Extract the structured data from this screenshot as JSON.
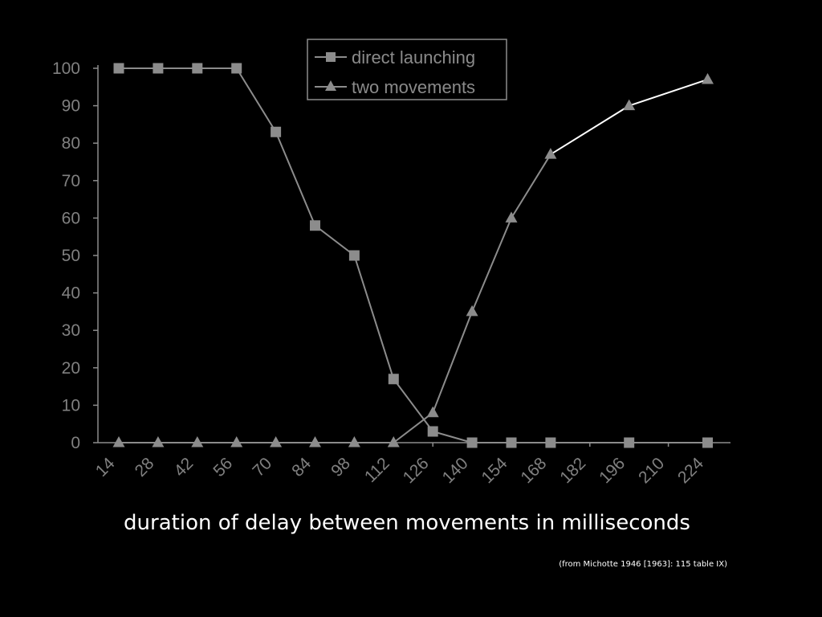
{
  "chart_data": {
    "type": "line",
    "xlabel": "duration of delay between movements in milliseconds",
    "ylabel": "",
    "ylim": [
      0,
      100
    ],
    "yticks": [
      0,
      10,
      20,
      30,
      40,
      50,
      60,
      70,
      80,
      90,
      100
    ],
    "xtick_labels": [
      "14",
      "28",
      "42",
      "56",
      "70",
      "84",
      "98",
      "112",
      "126",
      "140",
      "154",
      "168",
      "182",
      "196",
      "210",
      "224"
    ],
    "legend_position": "top-center",
    "grid": false,
    "series": [
      {
        "name": "direct launching",
        "marker": "square",
        "color": "#8c8c8c",
        "points": [
          {
            "x": 0,
            "y": 100
          },
          {
            "x": 1,
            "y": 100
          },
          {
            "x": 2,
            "y": 100
          },
          {
            "x": 3,
            "y": 100
          },
          {
            "x": 4,
            "y": 83
          },
          {
            "x": 5,
            "y": 58
          },
          {
            "x": 6,
            "y": 50
          },
          {
            "x": 7,
            "y": 17
          },
          {
            "x": 8,
            "y": 3
          },
          {
            "x": 9,
            "y": 0
          },
          {
            "x": 10,
            "y": 0
          },
          {
            "x": 11,
            "y": 0
          },
          {
            "x": 13,
            "y": 0
          },
          {
            "x": 15,
            "y": 0
          }
        ]
      },
      {
        "name": "two movements",
        "marker": "triangle",
        "color": "#8c8c8c",
        "upper_line_color": "#ffffff",
        "points": [
          {
            "x": 0,
            "y": 0
          },
          {
            "x": 1,
            "y": 0
          },
          {
            "x": 2,
            "y": 0
          },
          {
            "x": 3,
            "y": 0
          },
          {
            "x": 4,
            "y": 0
          },
          {
            "x": 5,
            "y": 0
          },
          {
            "x": 6,
            "y": 0
          },
          {
            "x": 7,
            "y": 0
          },
          {
            "x": 8,
            "y": 8
          },
          {
            "x": 9,
            "y": 35
          },
          {
            "x": 10,
            "y": 60
          },
          {
            "x": 11,
            "y": 77
          },
          {
            "x": 13,
            "y": 90
          },
          {
            "x": 15,
            "y": 97
          }
        ]
      }
    ],
    "source_note": "(from Michotte 1946 [1963]: 115 table IX)"
  }
}
